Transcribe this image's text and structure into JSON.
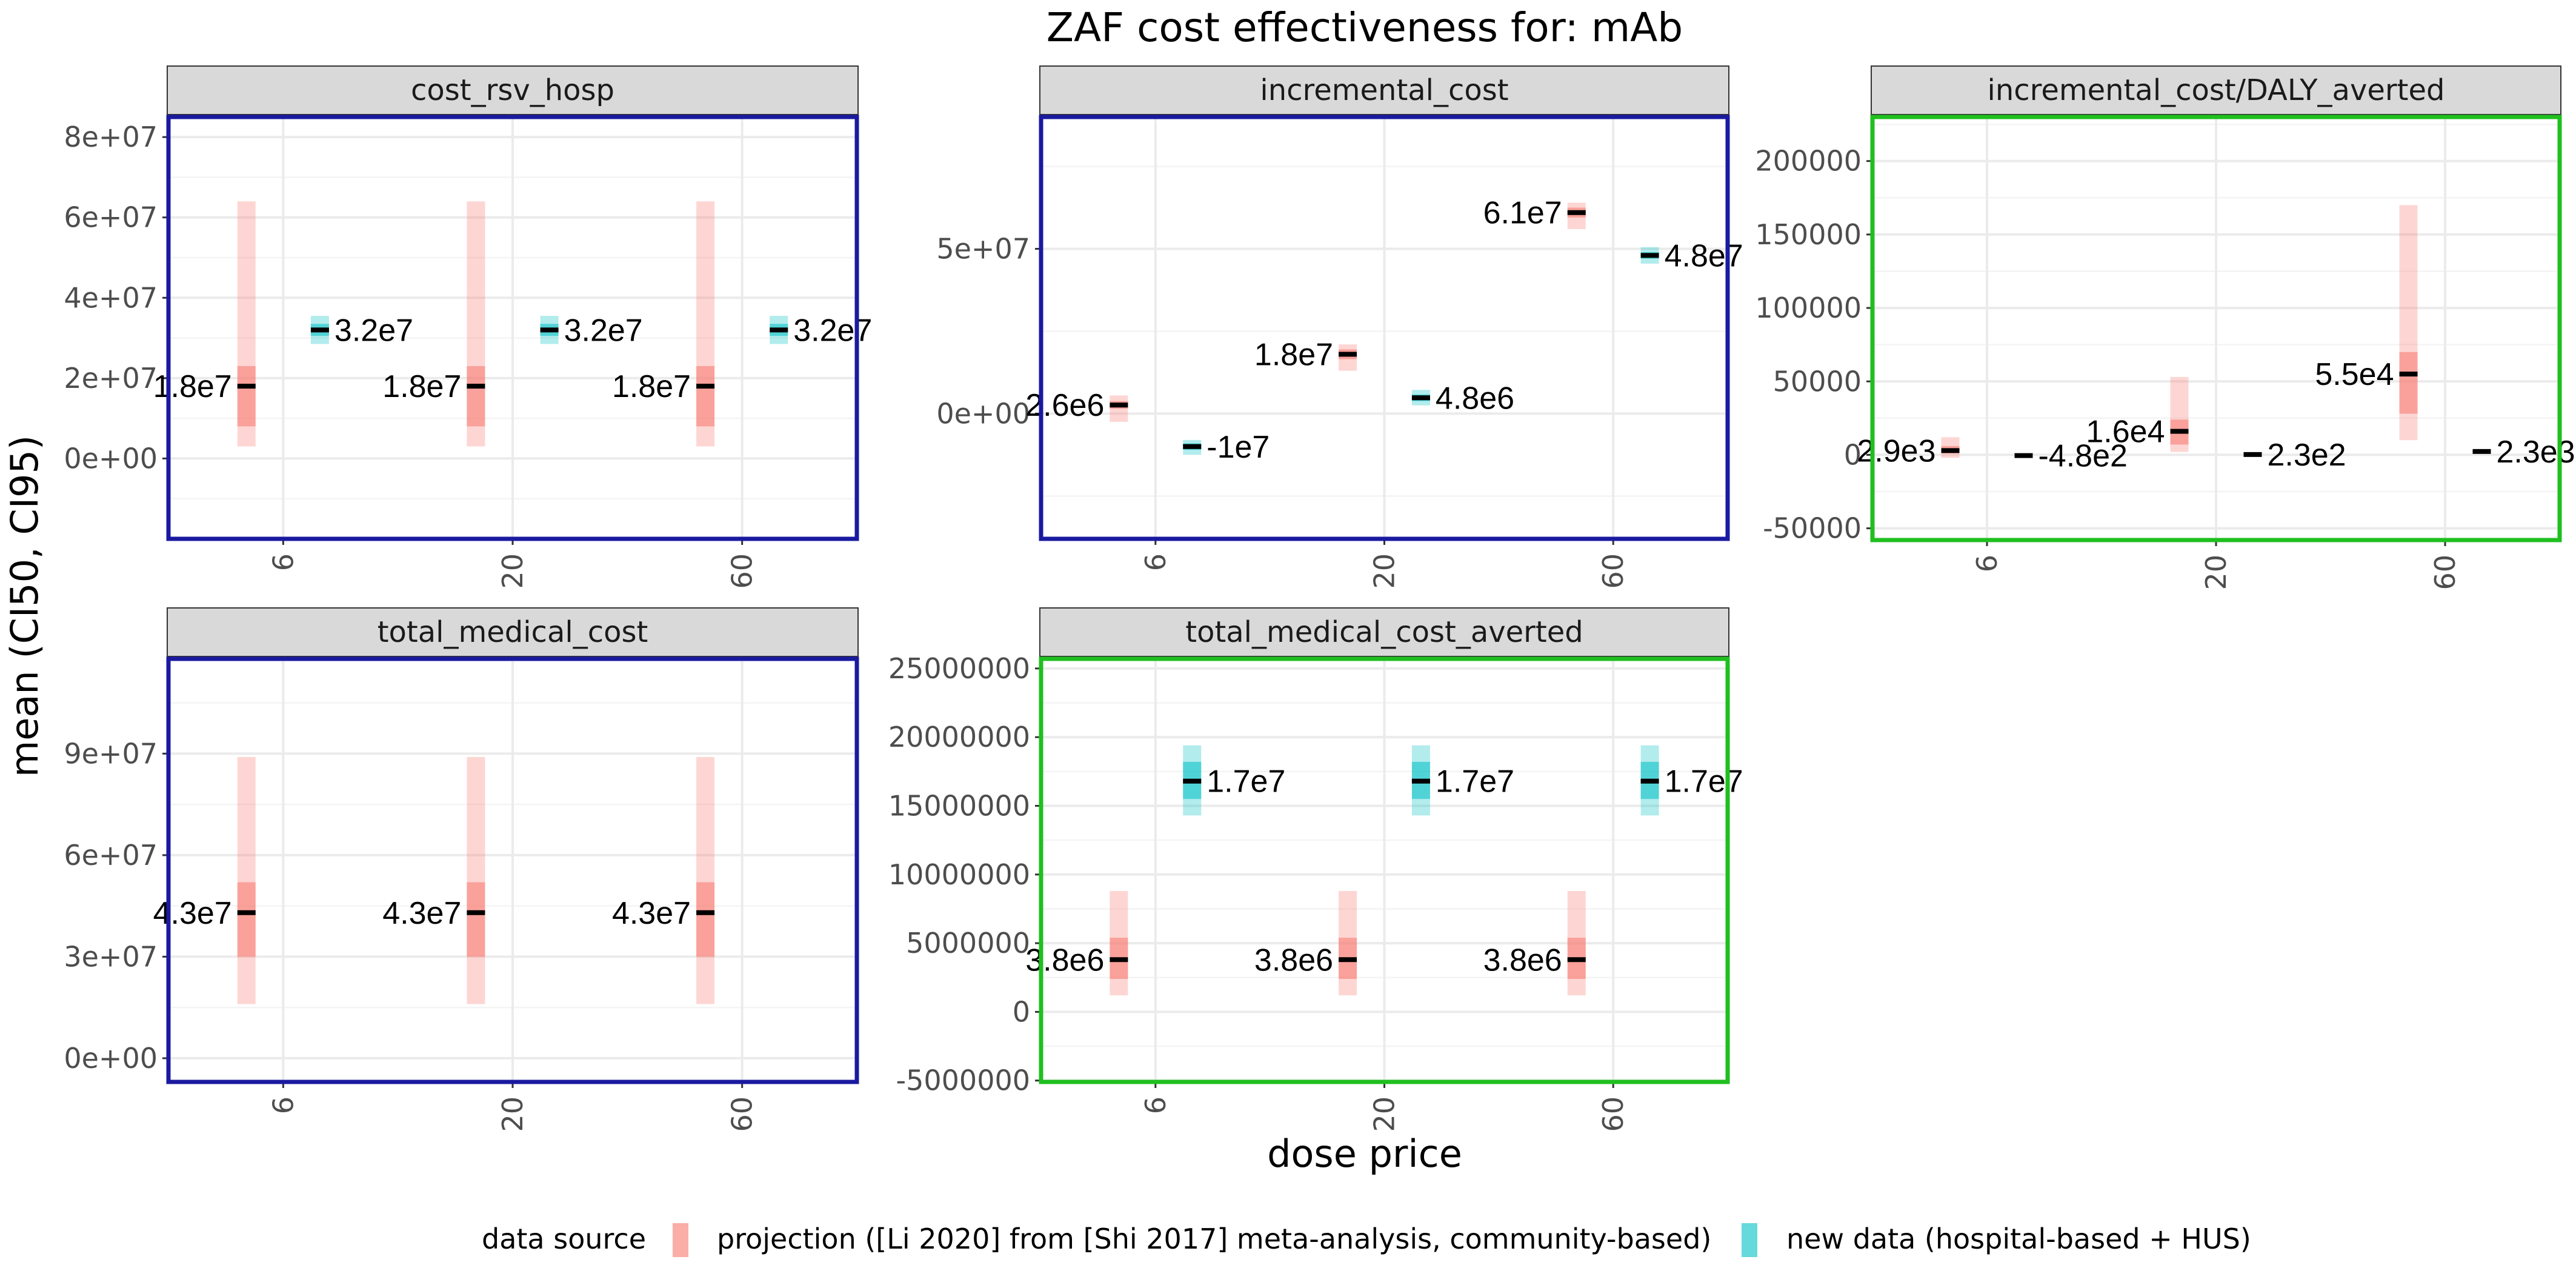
{
  "title": "ZAF cost effectiveness for: mAb",
  "x_axis_title": "dose price",
  "y_axis_title": "mean (CI50, CI95)",
  "legend": {
    "title": "data source",
    "items": [
      {
        "label": "projection ([Li 2020] from [Shi 2017] meta-analysis, community-based)",
        "color": "#F8766D"
      },
      {
        "label": "new data (hospital-based + HUS)",
        "color": "#00BFC4"
      }
    ]
  },
  "colors": {
    "projection": "#F8766D",
    "new_data": "#00BFC4",
    "border_blue": "#1a1aa0",
    "border_green": "#1fbf1f",
    "strip_fill": "#d9d9d9"
  },
  "chart_data": [
    {
      "type": "crossbar",
      "facet": "cost_rsv_hosp",
      "border": "blue",
      "categories": [
        "6",
        "20",
        "60"
      ],
      "ylim": [
        -20000000,
        85000000
      ],
      "yticks": [
        0,
        20000000,
        40000000,
        60000000,
        80000000
      ],
      "yticklabels": [
        "0e+00",
        "2e+07",
        "4e+07",
        "6e+07",
        "8e+07"
      ],
      "series": [
        {
          "name": "projection ([Li 2020] from [Shi 2017] meta-analysis, community-based)",
          "source": "projection",
          "points": [
            {
              "x": "6",
              "mean": 18000000,
              "lo50": 8000000,
              "hi50": 23000000,
              "lo95": 3000000,
              "hi95": 64000000,
              "label": "1.8e7"
            },
            {
              "x": "20",
              "mean": 18000000,
              "lo50": 8000000,
              "hi50": 23000000,
              "lo95": 3000000,
              "hi95": 64000000,
              "label": "1.8e7"
            },
            {
              "x": "60",
              "mean": 18000000,
              "lo50": 8000000,
              "hi50": 23000000,
              "lo95": 3000000,
              "hi95": 64000000,
              "label": "1.8e7"
            }
          ]
        },
        {
          "name": "new data (hospital-based + HUS)",
          "source": "new_data",
          "points": [
            {
              "x": "6",
              "mean": 32000000,
              "lo50": 30500000,
              "hi50": 33500000,
              "lo95": 28500000,
              "hi95": 35500000,
              "label": "3.2e7"
            },
            {
              "x": "20",
              "mean": 32000000,
              "lo50": 30500000,
              "hi50": 33500000,
              "lo95": 28500000,
              "hi95": 35500000,
              "label": "3.2e7"
            },
            {
              "x": "60",
              "mean": 32000000,
              "lo50": 30500000,
              "hi50": 33500000,
              "lo95": 28500000,
              "hi95": 35500000,
              "label": "3.2e7"
            }
          ]
        }
      ]
    },
    {
      "type": "crossbar",
      "facet": "incremental_cost",
      "border": "blue",
      "categories": [
        "6",
        "20",
        "60"
      ],
      "ylim": [
        -38000000,
        90000000
      ],
      "yticks": [
        0,
        50000000
      ],
      "yticklabels": [
        "0e+00",
        "5e+07"
      ],
      "series": [
        {
          "name": "projection ([Li 2020] from [Shi 2017] meta-analysis, community-based)",
          "source": "projection",
          "points": [
            {
              "x": "6",
              "mean": 2600000,
              "lo50": 1500000,
              "hi50": 3800000,
              "lo95": -2500000,
              "hi95": 5500000,
              "label": "2.6e6"
            },
            {
              "x": "20",
              "mean": 18000000,
              "lo50": 16500000,
              "hi50": 19500000,
              "lo95": 13000000,
              "hi95": 21000000,
              "label": "1.8e7"
            },
            {
              "x": "60",
              "mean": 61000000,
              "lo50": 59500000,
              "hi50": 62500000,
              "lo95": 56000000,
              "hi95": 64000000,
              "label": "6.1e7"
            }
          ]
        },
        {
          "name": "new data (hospital-based + HUS)",
          "source": "new_data",
          "points": [
            {
              "x": "6",
              "mean": -10000000,
              "lo50": -11000000,
              "hi50": -9000000,
              "lo95": -12500000,
              "hi95": -8000000,
              "label": "-1e7"
            },
            {
              "x": "20",
              "mean": 4800000,
              "lo50": 3800000,
              "hi50": 5800000,
              "lo95": 2500000,
              "hi95": 7200000,
              "label": "4.8e6"
            },
            {
              "x": "60",
              "mean": 48000000,
              "lo50": 47000000,
              "hi50": 49000000,
              "lo95": 45500000,
              "hi95": 50500000,
              "label": "4.8e7"
            }
          ]
        }
      ]
    },
    {
      "type": "crossbar",
      "facet": "incremental_cost/DALY_averted",
      "border": "green",
      "categories": [
        "6",
        "20",
        "60"
      ],
      "ylim": [
        -58000000,
        230000000
      ],
      "ylim_units": 0.001,
      "yticks": [
        -50000,
        0,
        50000,
        100000,
        150000,
        200000
      ],
      "yticklabels": [
        "-50000",
        "0",
        "50000",
        "100000",
        "150000",
        "200000"
      ],
      "series": [
        {
          "name": "projection ([Li 2020] from [Shi 2017] meta-analysis, community-based)",
          "source": "projection",
          "points": [
            {
              "x": "6",
              "mean": 2900,
              "lo50": 1000,
              "hi50": 6000,
              "lo95": -2000,
              "hi95": 12000,
              "label": "2.9e3"
            },
            {
              "x": "20",
              "mean": 16000,
              "lo50": 7000,
              "hi50": 24000,
              "lo95": 2000,
              "hi95": 53000,
              "label": "1.6e4"
            },
            {
              "x": "60",
              "mean": 55000,
              "lo50": 28000,
              "hi50": 70000,
              "lo95": 10000,
              "hi95": 170000,
              "label": "5.5e4"
            }
          ]
        },
        {
          "name": "new data (hospital-based + HUS)",
          "source": "new_data",
          "points": [
            {
              "x": "6",
              "mean": -480,
              "lo50": -1200,
              "hi50": 200,
              "lo95": -1800,
              "hi95": 800,
              "label": "-4.8e2"
            },
            {
              "x": "20",
              "mean": 230,
              "lo50": -400,
              "hi50": 900,
              "lo95": -900,
              "hi95": 1400,
              "label": "2.3e2"
            },
            {
              "x": "60",
              "mean": 2300,
              "lo50": 1500,
              "hi50": 3100,
              "lo95": 900,
              "hi95": 3700,
              "label": "2.3e3"
            }
          ]
        }
      ]
    },
    {
      "type": "crossbar",
      "facet": "total_medical_cost",
      "border": "blue",
      "categories": [
        "6",
        "20",
        "60"
      ],
      "ylim": [
        -7000000,
        118000000
      ],
      "yticks": [
        0,
        30000000,
        60000000,
        90000000
      ],
      "yticklabels": [
        "0e+00",
        "3e+07",
        "6e+07",
        "9e+07"
      ],
      "series": [
        {
          "name": "projection ([Li 2020] from [Shi 2017] meta-analysis, community-based)",
          "source": "projection",
          "points": [
            {
              "x": "6",
              "mean": 43000000,
              "lo50": 30000000,
              "hi50": 52000000,
              "lo95": 16000000,
              "hi95": 89000000,
              "label": "4.3e7"
            },
            {
              "x": "20",
              "mean": 43000000,
              "lo50": 30000000,
              "hi50": 52000000,
              "lo95": 16000000,
              "hi95": 89000000,
              "label": "4.3e7"
            },
            {
              "x": "60",
              "mean": 43000000,
              "lo50": 30000000,
              "hi50": 52000000,
              "lo95": 16000000,
              "hi95": 89000000,
              "label": "4.3e7"
            }
          ]
        }
      ]
    },
    {
      "type": "crossbar",
      "facet": "total_medical_cost_averted",
      "border": "green",
      "categories": [
        "6",
        "20",
        "60"
      ],
      "ylim": [
        -5100000,
        25700000
      ],
      "yticks": [
        -5000000,
        0,
        5000000,
        10000000,
        15000000,
        20000000,
        25000000
      ],
      "yticklabels": [
        "-5000000",
        "0",
        "5000000",
        "10000000",
        "15000000",
        "20000000",
        "25000000"
      ],
      "series": [
        {
          "name": "projection ([Li 2020] from [Shi 2017] meta-analysis, community-based)",
          "source": "projection",
          "points": [
            {
              "x": "6",
              "mean": 3800000,
              "lo50": 2400000,
              "hi50": 5400000,
              "lo95": 1200000,
              "hi95": 8800000,
              "label": "3.8e6"
            },
            {
              "x": "20",
              "mean": 3800000,
              "lo50": 2400000,
              "hi50": 5400000,
              "lo95": 1200000,
              "hi95": 8800000,
              "label": "3.8e6"
            },
            {
              "x": "60",
              "mean": 3800000,
              "lo50": 2400000,
              "hi50": 5400000,
              "lo95": 1200000,
              "hi95": 8800000,
              "label": "3.8e6"
            }
          ]
        },
        {
          "name": "new data (hospital-based + HUS)",
          "source": "new_data",
          "points": [
            {
              "x": "6",
              "mean": 16800000,
              "lo50": 15500000,
              "hi50": 18200000,
              "lo95": 14300000,
              "hi95": 19400000,
              "label": "1.7e7"
            },
            {
              "x": "20",
              "mean": 16800000,
              "lo50": 15500000,
              "hi50": 18200000,
              "lo95": 14300000,
              "hi95": 19400000,
              "label": "1.7e7"
            },
            {
              "x": "60",
              "mean": 16800000,
              "lo50": 15500000,
              "hi50": 18200000,
              "lo95": 14300000,
              "hi95": 19400000,
              "label": "1.7e7"
            }
          ]
        }
      ]
    }
  ]
}
